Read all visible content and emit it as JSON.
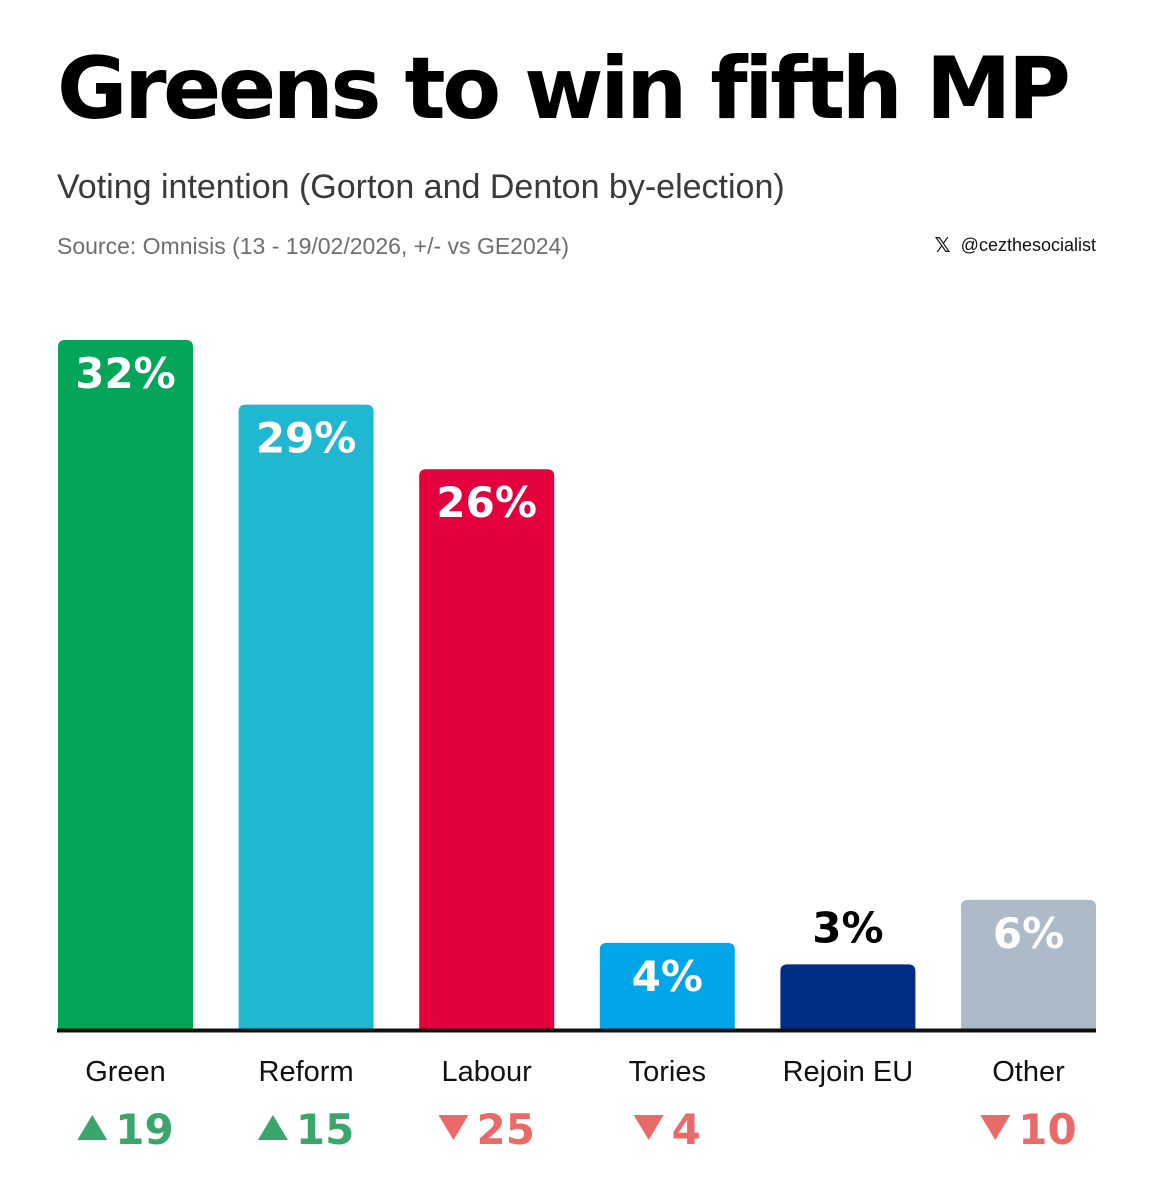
{
  "header": {
    "title": "Greens to win fifth MP",
    "subtitle": "Voting intention (Gorton and Denton by-election)",
    "source": "Source: Omnisis (13 - 19/02/2026, +/- vs GE2024)",
    "handle_icon": "x-logo-icon",
    "handle_icon_glyph": "𝕏",
    "handle": "@cezthesocialist"
  },
  "colors": {
    "up": "#3aa66b",
    "down": "#ea6a6a",
    "axis": "#111111"
  },
  "chart_data": {
    "type": "bar",
    "unit": "%",
    "ylim": [
      0,
      32
    ],
    "grid": false,
    "categories": [
      "Green",
      "Reform",
      "Labour",
      "Tories",
      "Rejoin EU",
      "Other"
    ],
    "values": [
      32,
      29,
      26,
      4,
      3,
      6
    ],
    "value_labels": [
      "32%",
      "29%",
      "26%",
      "4%",
      "3%",
      "6%"
    ],
    "bar_colors": [
      "#03a659",
      "#20b7d0",
      "#e3003c",
      "#00a6e7",
      "#022d86",
      "#adbac8"
    ],
    "changes": [
      {
        "direction": "up",
        "value": "19"
      },
      {
        "direction": "up",
        "value": "15"
      },
      {
        "direction": "down",
        "value": "25"
      },
      {
        "direction": "down",
        "value": "4"
      },
      null,
      {
        "direction": "down",
        "value": "10"
      }
    ]
  }
}
